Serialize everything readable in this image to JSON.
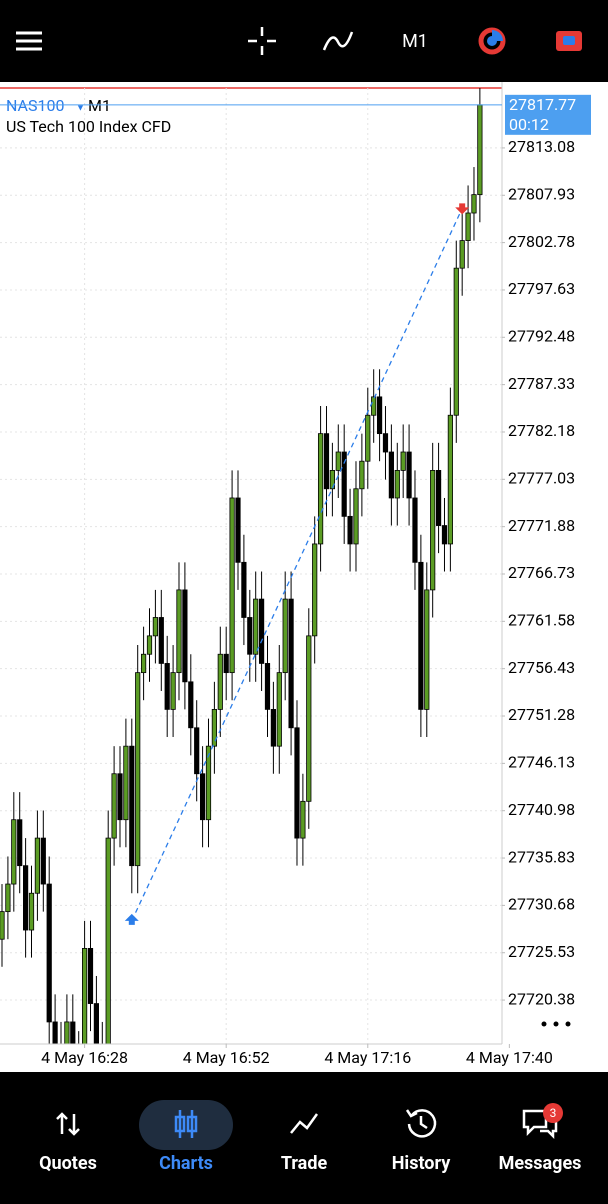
{
  "header": {
    "timeframe": "M1"
  },
  "chart_data": {
    "type": "candlestick",
    "symbol": "NAS100",
    "timeframe": "M1",
    "description": "US Tech 100 Index CFD",
    "open": [
      27727,
      27730,
      27733,
      27740,
      27735,
      27728,
      27732,
      27738,
      27733,
      27718,
      27715,
      27712,
      27718,
      27714,
      27710,
      27726,
      27720,
      27715,
      27712,
      27738,
      27745,
      27740,
      27748,
      27735,
      27756,
      27758,
      27760,
      27762,
      27757,
      27752,
      27756,
      27765,
      27755,
      27750,
      27745,
      27740,
      27748,
      27752,
      27758,
      27756,
      27775,
      27768,
      27762,
      27758,
      27764,
      27757,
      27752,
      27748,
      27756,
      27764,
      27750,
      27738,
      27742,
      27760,
      27770,
      27782,
      27776,
      27778,
      27780,
      27773,
      27770,
      27776,
      27779,
      27784,
      27786,
      27782,
      27780,
      27775,
      27778,
      27780,
      27775,
      27768,
      27752,
      27765,
      27778,
      27772,
      27770,
      27784,
      27800,
      27803,
      27806,
      27808
    ],
    "high": [
      27733,
      27736,
      27743,
      27743,
      27738,
      27735,
      27741,
      27741,
      27736,
      27721,
      27718,
      27721,
      27721,
      27717,
      27729,
      27729,
      27723,
      27718,
      27741,
      27748,
      27748,
      27751,
      27751,
      27759,
      27761,
      27763,
      27765,
      27765,
      27760,
      27759,
      27768,
      27768,
      27758,
      27753,
      27748,
      27751,
      27755,
      27761,
      27761,
      27778,
      27778,
      27771,
      27765,
      27767,
      27767,
      27760,
      27755,
      27759,
      27767,
      27767,
      27753,
      27745,
      27763,
      27773,
      27785,
      27785,
      27781,
      27783,
      27783,
      27776,
      27779,
      27782,
      27787,
      27789,
      27789,
      27785,
      27783,
      27781,
      27783,
      27783,
      27778,
      27771,
      27768,
      27781,
      27781,
      27775,
      27787,
      27803,
      27806,
      27809,
      27811,
      27820
    ],
    "low": [
      27724,
      27727,
      27730,
      27732,
      27725,
      27725,
      27729,
      27730,
      27715,
      27712,
      27709,
      27709,
      27711,
      27707,
      27707,
      27717,
      27712,
      27709,
      27709,
      27735,
      27737,
      27737,
      27732,
      27732,
      27753,
      27755,
      27757,
      27754,
      27749,
      27749,
      27753,
      27752,
      27747,
      27742,
      27737,
      27737,
      27745,
      27749,
      27753,
      27753,
      27765,
      27759,
      27755,
      27755,
      27754,
      27749,
      27745,
      27745,
      27753,
      27747,
      27735,
      27735,
      27739,
      27757,
      27767,
      27773,
      27773,
      27775,
      27770,
      27767,
      27767,
      27773,
      27776,
      27781,
      27779,
      27777,
      27772,
      27772,
      27775,
      27772,
      27765,
      27749,
      27749,
      27762,
      27769,
      27767,
      27767,
      27781,
      27797,
      27800,
      27803,
      27805
    ],
    "close": [
      27730,
      27733,
      27740,
      27735,
      27728,
      27732,
      27738,
      27733,
      27718,
      27715,
      27712,
      27718,
      27714,
      27710,
      27726,
      27720,
      27715,
      27712,
      27738,
      27745,
      27740,
      27748,
      27735,
      27756,
      27758,
      27760,
      27762,
      27757,
      27752,
      27756,
      27765,
      27755,
      27750,
      27745,
      27740,
      27748,
      27752,
      27758,
      27756,
      27775,
      27768,
      27762,
      27758,
      27764,
      27757,
      27752,
      27748,
      27756,
      27764,
      27750,
      27738,
      27742,
      27760,
      27770,
      27782,
      27776,
      27778,
      27780,
      27773,
      27770,
      27776,
      27779,
      27784,
      27786,
      27782,
      27780,
      27775,
      27778,
      27780,
      27775,
      27768,
      27752,
      27765,
      27778,
      27772,
      27770,
      27784,
      27800,
      27803,
      27806,
      27808,
      27817.77
    ],
    "up_color": "#5b9c24",
    "down_color": "#000000",
    "xlim": [
      -0.34,
      84.75
    ],
    "xticks": [
      {
        "value": 14,
        "label": "4 May 16:28"
      },
      {
        "value": 38,
        "label": "4 May 16:52"
      },
      {
        "value": 62,
        "label": "4 May 17:16"
      },
      {
        "value": 86,
        "label": "4 May 17:40"
      }
    ],
    "ylim": [
      27715.6,
      27819.6
    ],
    "yticks": [
      27813.08,
      27807.93,
      27802.78,
      27797.63,
      27792.48,
      27787.33,
      27782.18,
      27777.03,
      27771.88,
      27766.73,
      27761.58,
      27756.43,
      27751.28,
      27746.13,
      27740.98,
      27735.83,
      27730.68,
      27725.53,
      27720.38
    ],
    "grid": true,
    "current_price": 27817.77,
    "countdown": "00:12",
    "trade": {
      "entry_index": 22,
      "entry_price": 27729,
      "exit_index": 78,
      "exit_price": 27806.5
    }
  },
  "nav": {
    "items": [
      "Quotes",
      "Charts",
      "Trade",
      "History",
      "Messages"
    ],
    "active": 1,
    "badge": "3"
  }
}
